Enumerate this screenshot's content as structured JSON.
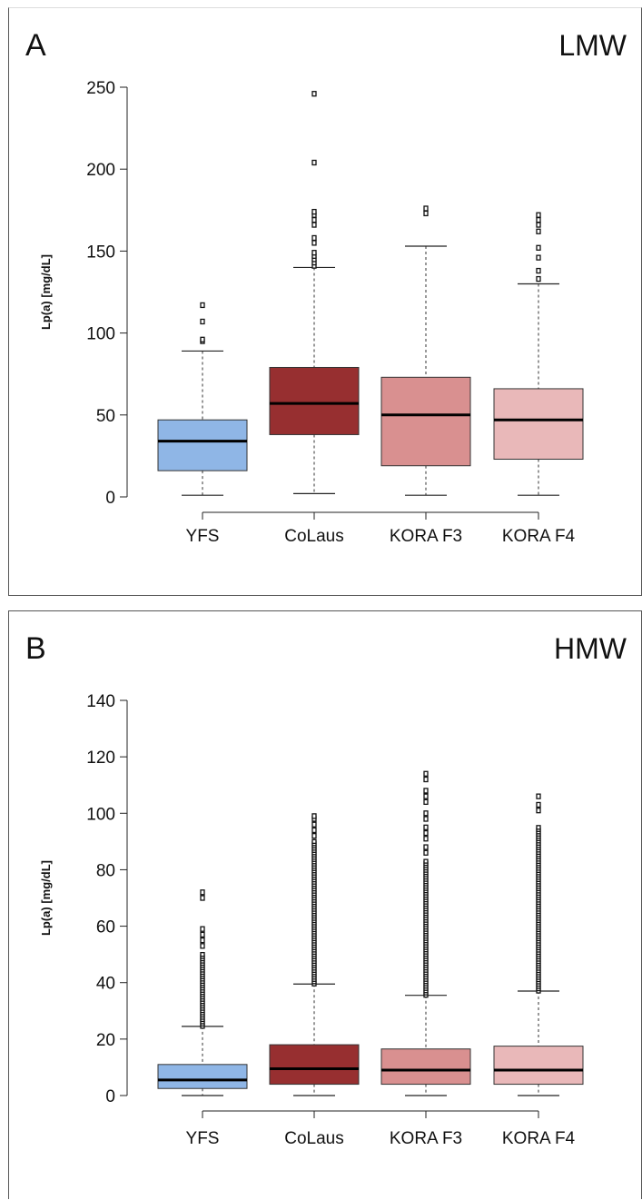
{
  "chart_data": [
    {
      "type": "box",
      "panel_letter": "A",
      "title": "LMW",
      "ylabel": "Lp(a) [mg/dL]",
      "ylim": [
        0,
        250
      ],
      "yticks": [
        0,
        50,
        100,
        150,
        200,
        250
      ],
      "grid": false,
      "categories": [
        "YFS",
        "CoLaus",
        "KORA F3",
        "KORA F4"
      ],
      "colors": [
        "#8fb6e6",
        "#972f30",
        "#d99090",
        "#e9b8b9"
      ],
      "boxes": [
        {
          "name": "YFS",
          "whisker_low": 1,
          "q1": 16,
          "median": 34,
          "q3": 47,
          "whisker_high": 89,
          "outliers": [
            95,
            96,
            107,
            117
          ]
        },
        {
          "name": "CoLaus",
          "whisker_low": 2,
          "q1": 38,
          "median": 57,
          "q3": 79,
          "whisker_high": 140,
          "outliers": [
            141,
            143,
            145,
            147,
            149,
            155,
            158,
            166,
            169,
            172,
            174,
            204,
            246
          ]
        },
        {
          "name": "KORA F3",
          "whisker_low": 1,
          "q1": 19,
          "median": 50,
          "q3": 73,
          "whisker_high": 153,
          "outliers": [
            173,
            176
          ]
        },
        {
          "name": "KORA F4",
          "whisker_low": 1,
          "q1": 23,
          "median": 47,
          "q3": 66,
          "whisker_high": 130,
          "outliers": [
            133,
            138,
            146,
            152,
            162,
            166,
            169,
            172
          ]
        }
      ]
    },
    {
      "type": "box",
      "panel_letter": "B",
      "title": "HMW",
      "ylabel": "Lp(a) [mg/dL]",
      "ylim": [
        0,
        140
      ],
      "yticks": [
        0,
        20,
        40,
        60,
        80,
        100,
        120,
        140
      ],
      "grid": false,
      "categories": [
        "YFS",
        "CoLaus",
        "KORA F3",
        "KORA F4"
      ],
      "colors": [
        "#8fb6e6",
        "#972f30",
        "#d99090",
        "#e9b8b9"
      ],
      "boxes": [
        {
          "name": "YFS",
          "whisker_low": 0,
          "q1": 2.5,
          "median": 5.5,
          "q3": 11,
          "whisker_high": 24.5,
          "outliers_dense_range": [
            24.5,
            50
          ],
          "outliers": [
            53,
            55,
            57,
            59,
            70,
            72
          ]
        },
        {
          "name": "CoLaus",
          "whisker_low": 0,
          "q1": 4,
          "median": 9.5,
          "q3": 18,
          "whisker_high": 39.5,
          "outliers_dense_range": [
            39.5,
            90
          ],
          "outliers": [
            92,
            94,
            96,
            98,
            99
          ]
        },
        {
          "name": "KORA F3",
          "whisker_low": 0,
          "q1": 4,
          "median": 9,
          "q3": 16.5,
          "whisker_high": 35.5,
          "outliers_dense_range": [
            35.5,
            83
          ],
          "outliers": [
            86,
            88,
            91,
            93,
            95,
            98,
            100,
            104,
            106,
            108,
            112,
            114
          ]
        },
        {
          "name": "KORA F4",
          "whisker_low": 0,
          "q1": 4,
          "median": 9,
          "q3": 17.5,
          "whisker_high": 37,
          "outliers_dense_range": [
            37,
            95
          ],
          "outliers": [
            101,
            103,
            106
          ]
        }
      ]
    }
  ]
}
